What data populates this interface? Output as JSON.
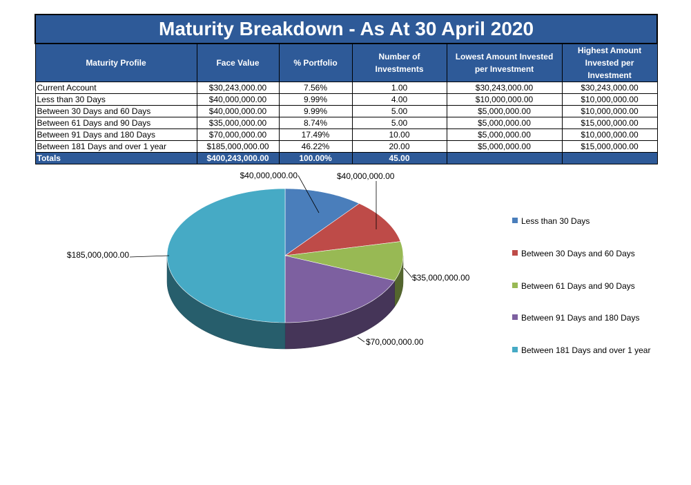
{
  "table": {
    "title": "Maturity Breakdown - As At 30 April 2020",
    "headers": [
      "Maturity Profile",
      "Face Value",
      "% Portfolio",
      "Number of Investments",
      "Lowest Amount Invested per Investment",
      "Highest Amount Invested per Investment"
    ],
    "rows": [
      [
        "Current Account",
        "$30,243,000.00",
        "7.56%",
        "1.00",
        "$30,243,000.00",
        "$30,243,000.00"
      ],
      [
        "Less than 30 Days",
        "$40,000,000.00",
        "9.99%",
        "4.00",
        "$10,000,000.00",
        "$10,000,000.00"
      ],
      [
        "Between 30 Days and 60 Days",
        "$40,000,000.00",
        "9.99%",
        "5.00",
        "$5,000,000.00",
        "$10,000,000.00"
      ],
      [
        "Between 61 Days and 90 Days",
        "$35,000,000.00",
        "8.74%",
        "5.00",
        "$5,000,000.00",
        "$15,000,000.00"
      ],
      [
        "Between 91 Days and 180 Days",
        "$70,000,000.00",
        "17.49%",
        "10.00",
        "$5,000,000.00",
        "$10,000,000.00"
      ],
      [
        "Between 181 Days and over 1 year",
        "$185,000,000.00",
        "46.22%",
        "20.00",
        "$5,000,000.00",
        "$15,000,000.00"
      ]
    ],
    "totals": [
      "Totals",
      "$400,243,000.00",
      "100.00%",
      "45.00",
      "",
      ""
    ]
  },
  "chart_data": {
    "type": "pie",
    "categories": [
      "Less than 30 Days",
      "Between 30 Days and 60 Days",
      "Between 61 Days and 90 Days",
      "Between 91 Days and 180 Days",
      "Between 181 Days and over 1 year"
    ],
    "values": [
      40000000,
      40000000,
      35000000,
      70000000,
      185000000
    ],
    "data_labels": [
      "$40,000,000.00",
      "$40,000,000.00",
      "$35,000,000.00",
      "$70,000,000.00",
      "$185,000,000.00"
    ],
    "colors": [
      "#4a7ebb",
      "#be4b48",
      "#98b954",
      "#7d60a0",
      "#46aac5"
    ],
    "legend_position": "right",
    "style": "3d"
  }
}
